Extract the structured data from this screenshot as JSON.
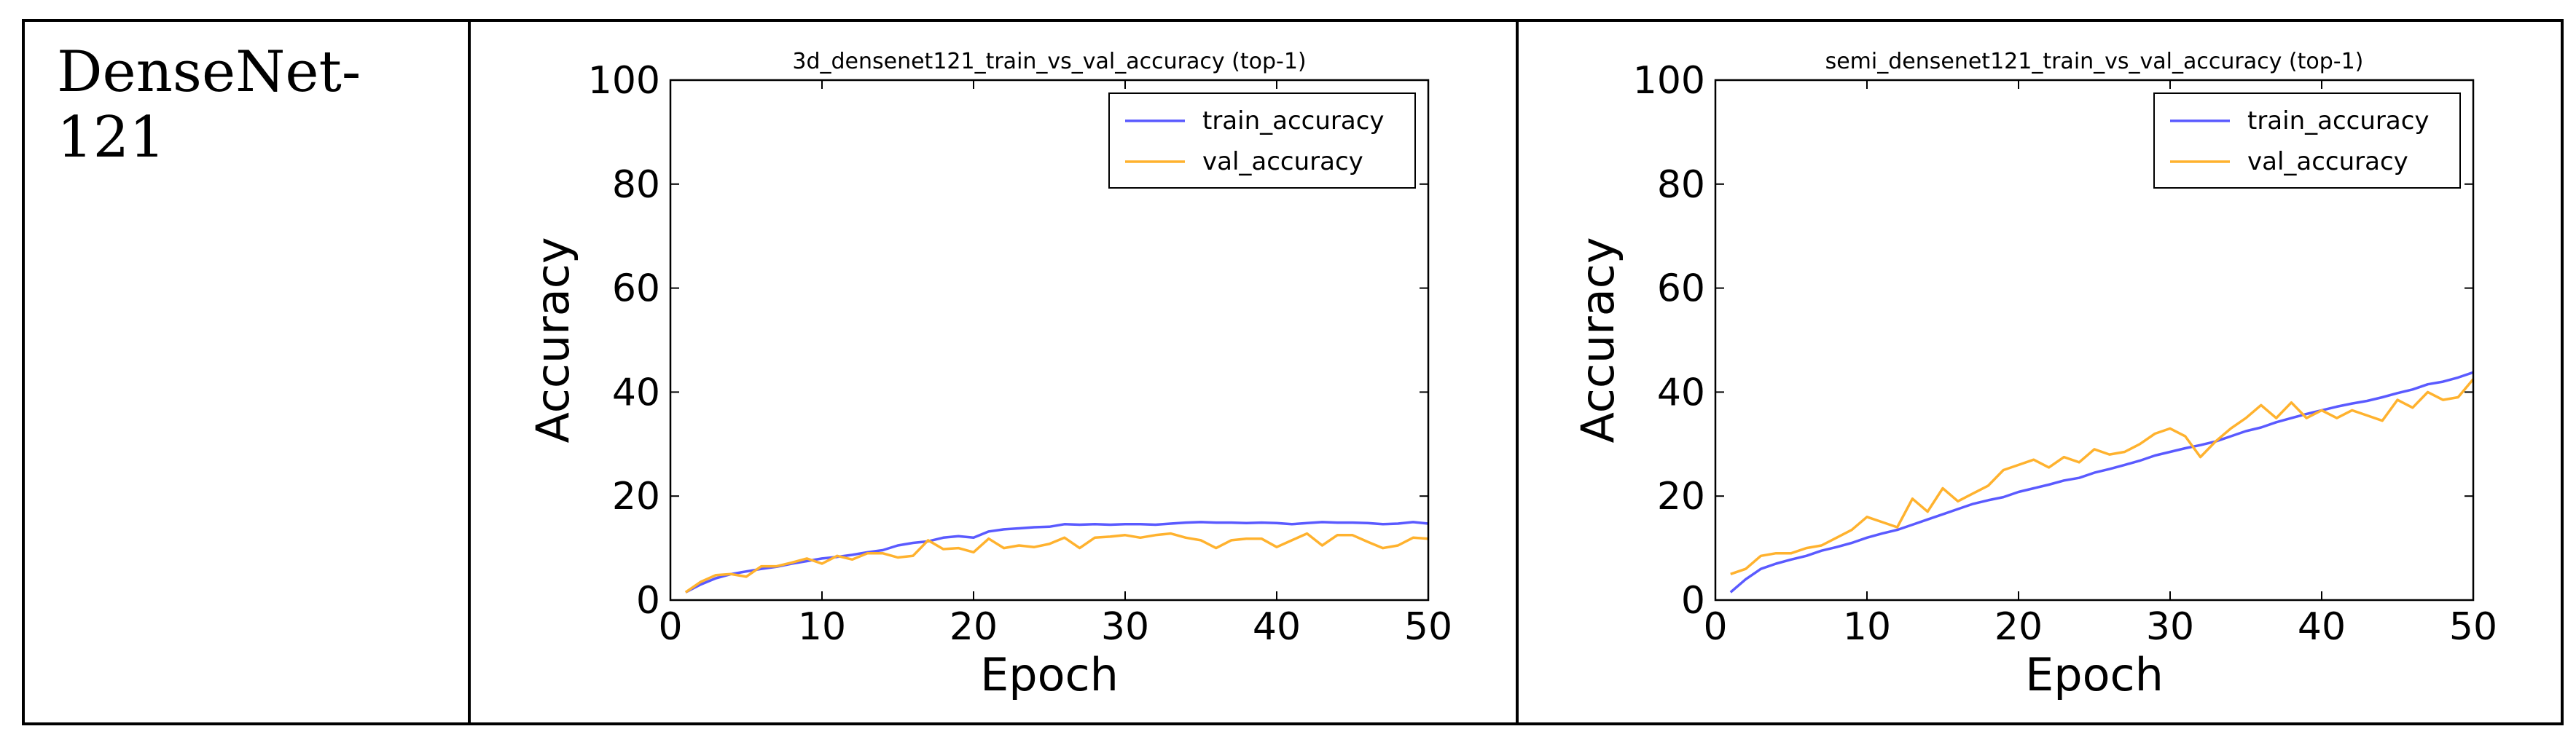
{
  "row_label": "DenseNet-121",
  "colors": {
    "train": "#5a5aff",
    "val": "#ffb22e",
    "frame": "#000000"
  },
  "chart_data": [
    {
      "type": "line",
      "title": "3d_densenet121_train_vs_val_accuracy (top-1)",
      "xlabel": "Epoch",
      "ylabel": "Accuracy",
      "xlim": [
        0,
        50
      ],
      "ylim": [
        0,
        100
      ],
      "xticks": [
        0,
        10,
        20,
        30,
        40,
        50
      ],
      "yticks": [
        0,
        20,
        40,
        60,
        80,
        100
      ],
      "legend": "top-right",
      "x": [
        1,
        2,
        3,
        4,
        5,
        6,
        7,
        8,
        9,
        10,
        11,
        12,
        13,
        14,
        15,
        16,
        17,
        18,
        19,
        20,
        21,
        22,
        23,
        24,
        25,
        26,
        27,
        28,
        29,
        30,
        31,
        32,
        33,
        34,
        35,
        36,
        37,
        38,
        39,
        40,
        41,
        42,
        43,
        44,
        45,
        46,
        47,
        48,
        49,
        50
      ],
      "series": [
        {
          "name": "train_accuracy",
          "color": "#5a5aff",
          "values": [
            1.5,
            3.0,
            4.2,
            5.0,
            5.5,
            6.0,
            6.4,
            7.0,
            7.5,
            8.0,
            8.3,
            8.7,
            9.2,
            9.6,
            10.5,
            11.0,
            11.3,
            12.0,
            12.3,
            12.0,
            13.2,
            13.6,
            13.8,
            14.0,
            14.1,
            14.6,
            14.5,
            14.6,
            14.5,
            14.6,
            14.6,
            14.5,
            14.7,
            14.9,
            15.0,
            14.9,
            14.9,
            14.8,
            14.9,
            14.8,
            14.6,
            14.8,
            15.0,
            14.9,
            14.9,
            14.8,
            14.6,
            14.7,
            15.0,
            14.7
          ]
        },
        {
          "name": "val_accuracy",
          "color": "#ffb22e",
          "values": [
            1.5,
            3.5,
            4.8,
            5.0,
            4.5,
            6.5,
            6.5,
            7.2,
            8.0,
            7.0,
            8.5,
            7.8,
            9.0,
            9.0,
            8.2,
            8.5,
            11.5,
            9.8,
            10.0,
            9.2,
            11.8,
            10.0,
            10.5,
            10.2,
            10.8,
            12.0,
            10.0,
            12.0,
            12.2,
            12.5,
            12.0,
            12.5,
            12.8,
            12.0,
            11.5,
            10.0,
            11.5,
            11.8,
            11.8,
            10.2,
            11.5,
            12.8,
            10.5,
            12.5,
            12.5,
            11.2,
            10.0,
            10.5,
            12.0,
            11.8
          ]
        }
      ]
    },
    {
      "type": "line",
      "title": "semi_densenet121_train_vs_val_accuracy (top-1)",
      "xlabel": "Epoch",
      "ylabel": "Accuracy",
      "xlim": [
        0,
        50
      ],
      "ylim": [
        0,
        100
      ],
      "xticks": [
        0,
        10,
        20,
        30,
        40,
        50
      ],
      "yticks": [
        0,
        20,
        40,
        60,
        80,
        100
      ],
      "legend": "top-right",
      "x": [
        1,
        2,
        3,
        4,
        5,
        6,
        7,
        8,
        9,
        10,
        11,
        12,
        13,
        14,
        15,
        16,
        17,
        18,
        19,
        20,
        21,
        22,
        23,
        24,
        25,
        26,
        27,
        28,
        29,
        30,
        31,
        32,
        33,
        34,
        35,
        36,
        37,
        38,
        39,
        40,
        41,
        42,
        43,
        44,
        45,
        46,
        47,
        48,
        49,
        50
      ],
      "series": [
        {
          "name": "train_accuracy",
          "color": "#5a5aff",
          "values": [
            1.5,
            4.0,
            6.0,
            7.0,
            7.8,
            8.5,
            9.5,
            10.2,
            11.0,
            12.0,
            12.8,
            13.5,
            14.5,
            15.5,
            16.5,
            17.5,
            18.5,
            19.2,
            19.8,
            20.8,
            21.5,
            22.2,
            23.0,
            23.5,
            24.5,
            25.2,
            26.0,
            26.8,
            27.8,
            28.5,
            29.2,
            29.8,
            30.5,
            31.5,
            32.5,
            33.2,
            34.2,
            35.0,
            35.8,
            36.5,
            37.2,
            37.8,
            38.3,
            39.0,
            39.8,
            40.5,
            41.5,
            42.0,
            42.8,
            43.8
          ]
        },
        {
          "name": "val_accuracy",
          "color": "#ffb22e",
          "values": [
            5.0,
            6.0,
            8.5,
            9.0,
            9.0,
            10.0,
            10.5,
            12.0,
            13.5,
            16.0,
            15.0,
            14.0,
            19.5,
            17.0,
            21.5,
            19.0,
            20.5,
            22.0,
            25.0,
            26.0,
            27.0,
            25.5,
            27.5,
            26.5,
            29.0,
            28.0,
            28.5,
            30.0,
            32.0,
            33.0,
            31.5,
            27.5,
            30.5,
            33.0,
            35.0,
            37.5,
            35.0,
            38.0,
            35.0,
            36.5,
            35.0,
            36.5,
            35.5,
            34.5,
            38.5,
            37.0,
            40.0,
            38.5,
            39.0,
            42.5
          ]
        }
      ]
    }
  ]
}
